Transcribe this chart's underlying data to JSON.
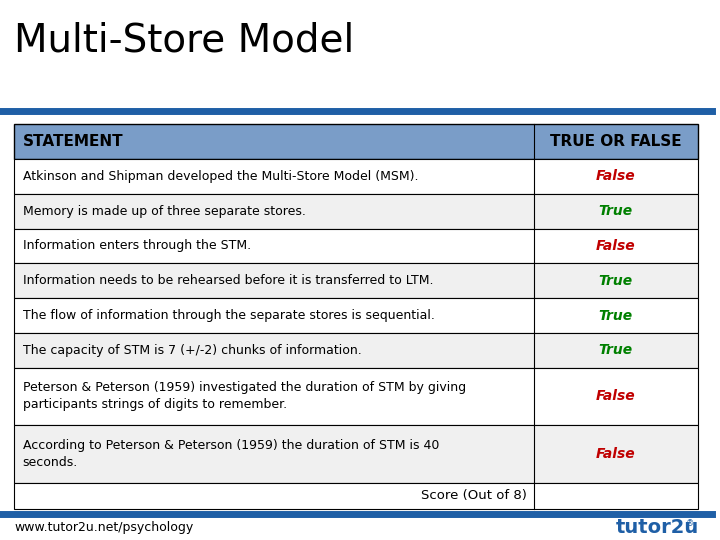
{
  "title": "Multi-Store Model",
  "title_fontsize": 28,
  "title_color": "#000000",
  "header": [
    "STATEMENT",
    "TRUE OR FALSE"
  ],
  "header_bg": "#7a9dc8",
  "header_text_color": "#000000",
  "header_fontsize": 11,
  "rows": [
    {
      "statement": "Atkinson and Shipman developed the Multi-Store Model (MSM).",
      "answer": "False",
      "answer_color": "#c00000",
      "bg": "#ffffff"
    },
    {
      "statement": "Memory is made up of three separate stores.",
      "answer": "True",
      "answer_color": "#008000",
      "bg": "#f0f0f0"
    },
    {
      "statement": "Information enters through the STM.",
      "answer": "False",
      "answer_color": "#c00000",
      "bg": "#ffffff"
    },
    {
      "statement": "Information needs to be rehearsed before it is transferred to LTM.",
      "answer": "True",
      "answer_color": "#008000",
      "bg": "#f0f0f0"
    },
    {
      "statement": "The flow of information through the separate stores is sequential.",
      "answer": "True",
      "answer_color": "#008000",
      "bg": "#ffffff"
    },
    {
      "statement": "The capacity of STM is 7 (+/-2) chunks of information.",
      "answer": "True",
      "answer_color": "#008000",
      "bg": "#f0f0f0"
    },
    {
      "statement": "Peterson & Peterson (1959) investigated the duration of STM by giving\nparticipants strings of digits to remember.",
      "answer": "False",
      "answer_color": "#c00000",
      "bg": "#ffffff",
      "multiline": true
    },
    {
      "statement": "According to Peterson & Peterson (1959) the duration of STM is 40\nseconds.",
      "answer": "False",
      "answer_color": "#c00000",
      "bg": "#f0f0f0",
      "multiline": true
    }
  ],
  "score_row": "Score (Out of 8)",
  "footer_text": "www.tutor2u.net/psychology",
  "footer_color": "#000000",
  "footer_fontsize": 9,
  "blue_line_color": "#1f5fa6",
  "border_color": "#000000",
  "col_split": 0.76,
  "bg_color": "#ffffff"
}
